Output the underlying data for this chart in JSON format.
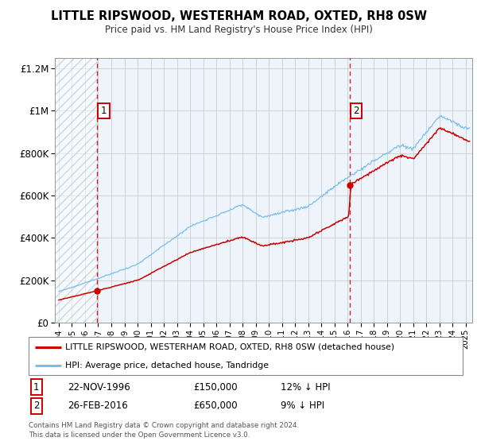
{
  "title": "LITTLE RIPSWOOD, WESTERHAM ROAD, OXTED, RH8 0SW",
  "subtitle": "Price paid vs. HM Land Registry's House Price Index (HPI)",
  "ylim": [
    0,
    1250000
  ],
  "xlim_start": 1993.7,
  "xlim_end": 2025.5,
  "yticks": [
    0,
    200000,
    400000,
    600000,
    800000,
    1000000,
    1200000
  ],
  "ytick_labels": [
    "£0",
    "£200K",
    "£400K",
    "£600K",
    "£800K",
    "£1M",
    "£1.2M"
  ],
  "xticks": [
    1994,
    1995,
    1996,
    1997,
    1998,
    1999,
    2000,
    2001,
    2002,
    2003,
    2004,
    2005,
    2006,
    2007,
    2008,
    2009,
    2010,
    2011,
    2012,
    2013,
    2014,
    2015,
    2016,
    2017,
    2018,
    2019,
    2020,
    2021,
    2022,
    2023,
    2024,
    2025
  ],
  "hpi_color": "#7bbfe8",
  "price_color": "#cc0000",
  "vline_color": "#cc0000",
  "sale1_year": 1996.9,
  "sale1_price": 150000,
  "sale1_label": "22-NOV-1996",
  "sale1_amount": "£150,000",
  "sale1_hpi": "12% ↓ HPI",
  "sale2_year": 2016.15,
  "sale2_price": 650000,
  "sale2_label": "26-FEB-2016",
  "sale2_amount": "£650,000",
  "sale2_hpi": "9% ↓ HPI",
  "legend_line1": "LITTLE RIPSWOOD, WESTERHAM ROAD, OXTED, RH8 0SW (detached house)",
  "legend_line2": "HPI: Average price, detached house, Tandridge",
  "footer1": "Contains HM Land Registry data © Crown copyright and database right 2024.",
  "footer2": "This data is licensed under the Open Government Licence v3.0.",
  "bg_color": "#eef4fb",
  "grid_color": "#cccccc"
}
